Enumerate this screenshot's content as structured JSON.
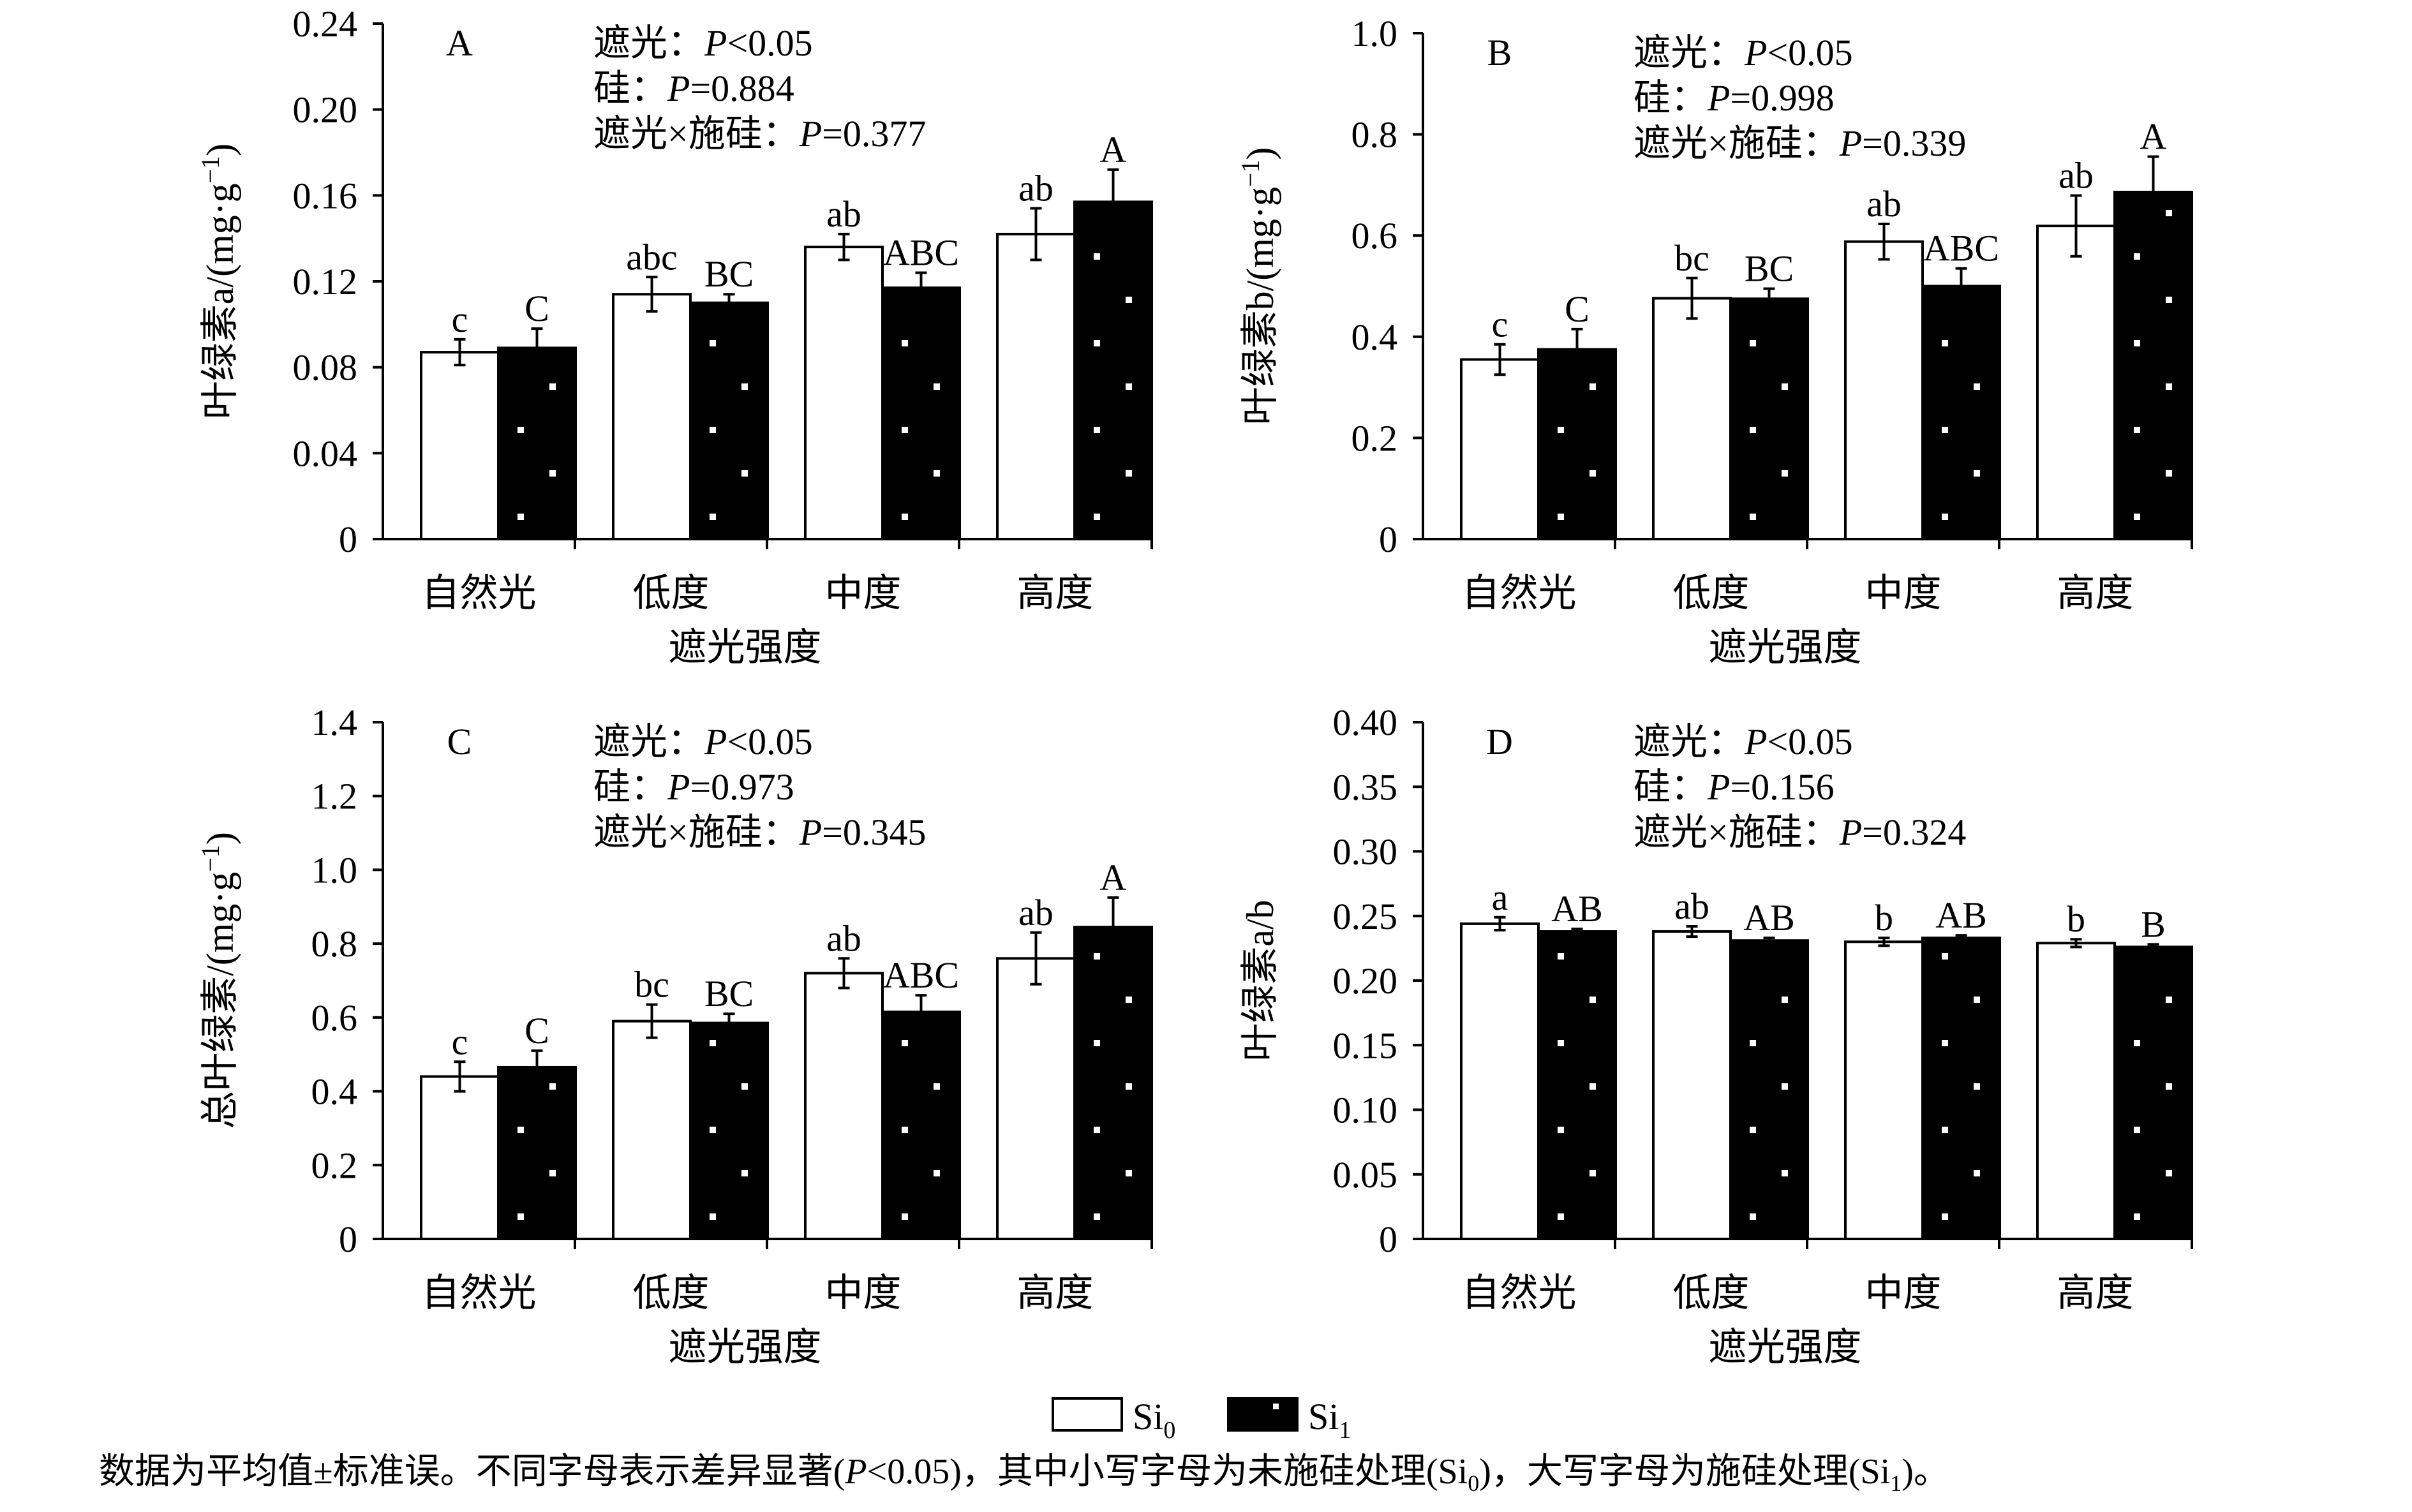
{
  "chart_data": [
    {
      "type": "bar",
      "panel_label": "A",
      "ylabel_main": "叶绿素a/(mg",
      "ylabel_dot": "·",
      "ylabel_g": "g",
      "ylabel_exp": "−1",
      "ylabel_close": ")",
      "xlabel": "遮光强度",
      "categories": [
        "自然光",
        "低度",
        "中度",
        "高度"
      ],
      "ylim": [
        0,
        0.24
      ],
      "yticks": [
        "0",
        "0.04",
        "0.08",
        "0.12",
        "0.16",
        "0.20",
        "0.24"
      ],
      "stats": [
        {
          "name": "遮光：",
          "p": "P",
          "val": "<0.05"
        },
        {
          "name": "硅：",
          "p": "P",
          "val": "=0.884"
        },
        {
          "name": "遮光×施硅：",
          "p": "P",
          "val": "=0.377"
        }
      ],
      "series": [
        {
          "name": "Si0",
          "values": [
            0.087,
            0.114,
            0.136,
            0.142
          ],
          "errors": [
            0.006,
            0.008,
            0.006,
            0.012
          ],
          "letters": [
            "c",
            "abc",
            "ab",
            "ab"
          ]
        },
        {
          "name": "Si1",
          "values": [
            0.089,
            0.11,
            0.117,
            0.157
          ],
          "errors": [
            0.009,
            0.004,
            0.007,
            0.015
          ],
          "letters": [
            "C",
            "BC",
            "ABC",
            "A"
          ]
        }
      ]
    },
    {
      "type": "bar",
      "panel_label": "B",
      "ylabel_main": "叶绿素b/(mg",
      "ylabel_dot": "·",
      "ylabel_g": "g",
      "ylabel_exp": "−1",
      "ylabel_close": ")",
      "xlabel": "遮光强度",
      "categories": [
        "自然光",
        "低度",
        "中度",
        "高度"
      ],
      "ylim": [
        0,
        1.0
      ],
      "yticks": [
        "0",
        "0.2",
        "0.4",
        "0.6",
        "0.8",
        "1.0"
      ],
      "stats": [
        {
          "name": "遮光：",
          "p": "P",
          "val": "<0.05"
        },
        {
          "name": "硅：",
          "p": "P",
          "val": "=0.998"
        },
        {
          "name": "遮光×施硅：",
          "p": "P",
          "val": "=0.339"
        }
      ],
      "series": [
        {
          "name": "Si0",
          "values": [
            0.355,
            0.476,
            0.588,
            0.619
          ],
          "errors": [
            0.03,
            0.04,
            0.035,
            0.06
          ],
          "letters": [
            "c",
            "bc",
            "ab",
            "ab"
          ]
        },
        {
          "name": "Si1",
          "values": [
            0.375,
            0.475,
            0.5,
            0.686
          ],
          "errors": [
            0.04,
            0.02,
            0.035,
            0.07
          ],
          "letters": [
            "C",
            "BC",
            "ABC",
            "A"
          ]
        }
      ]
    },
    {
      "type": "bar",
      "panel_label": "C",
      "ylabel_main": "总叶绿素/(mg",
      "ylabel_dot": "·",
      "ylabel_g": "g",
      "ylabel_exp": "−1",
      "ylabel_close": ")",
      "xlabel": "遮光强度",
      "categories": [
        "自然光",
        "低度",
        "中度",
        "高度"
      ],
      "ylim": [
        0,
        1.4
      ],
      "yticks": [
        "0",
        "0.2",
        "0.4",
        "0.6",
        "0.8",
        "1.0",
        "1.2",
        "1.4"
      ],
      "stats": [
        {
          "name": "遮光：",
          "p": "P",
          "val": "<0.05"
        },
        {
          "name": "硅：",
          "p": "P",
          "val": "=0.973"
        },
        {
          "name": "遮光×施硅：",
          "p": "P",
          "val": "=0.345"
        }
      ],
      "series": [
        {
          "name": "Si0",
          "values": [
            0.44,
            0.59,
            0.72,
            0.76
          ],
          "errors": [
            0.04,
            0.045,
            0.04,
            0.07
          ],
          "letters": [
            "c",
            "bc",
            "ab",
            "ab"
          ]
        },
        {
          "name": "Si1",
          "values": [
            0.465,
            0.585,
            0.615,
            0.845
          ],
          "errors": [
            0.045,
            0.025,
            0.045,
            0.08
          ],
          "letters": [
            "C",
            "BC",
            "ABC",
            "A"
          ]
        }
      ]
    },
    {
      "type": "bar",
      "panel_label": "D",
      "ylabel_main": "叶绿素a/b",
      "ylabel_dot": "",
      "ylabel_g": "",
      "ylabel_exp": "",
      "ylabel_close": "",
      "xlabel": "遮光强度",
      "categories": [
        "自然光",
        "低度",
        "中度",
        "高度"
      ],
      "ylim": [
        0,
        0.4
      ],
      "yticks": [
        "0",
        "0.05",
        "0.10",
        "0.15",
        "0.20",
        "0.25",
        "0.30",
        "0.35",
        "0.40"
      ],
      "stats": [
        {
          "name": "遮光：",
          "p": "P",
          "val": "<0.05"
        },
        {
          "name": "硅：",
          "p": "P",
          "val": "=0.156"
        },
        {
          "name": "遮光×施硅：",
          "p": "P",
          "val": "=0.324"
        }
      ],
      "series": [
        {
          "name": "Si0",
          "values": [
            0.244,
            0.238,
            0.23,
            0.229
          ],
          "errors": [
            0.005,
            0.004,
            0.003,
            0.003
          ],
          "letters": [
            "a",
            "ab",
            "b",
            "b"
          ]
        },
        {
          "name": "Si1",
          "values": [
            0.238,
            0.231,
            0.233,
            0.226
          ],
          "errors": [
            0.002,
            0.002,
            0.002,
            0.002
          ],
          "letters": [
            "AB",
            "AB",
            "AB",
            "B"
          ]
        }
      ]
    }
  ],
  "legend": {
    "si0_base": "Si",
    "si0_sub": "0",
    "si1_base": "Si",
    "si1_sub": "1"
  },
  "caption": {
    "part1": "数据为平均值±标准误。不同字母表示差异显著(",
    "p": "P",
    "part2": "<0.05)，其中小写字母为未施硅处理(Si",
    "sub0": "0",
    "part3": ")，大写字母为施硅处理(Si",
    "sub1": "1",
    "part4": ")。"
  },
  "colors": {
    "si0_fill": "#ffffff",
    "si1_fill": "#000000",
    "dot": "#ffffff",
    "axis": "#000000"
  }
}
